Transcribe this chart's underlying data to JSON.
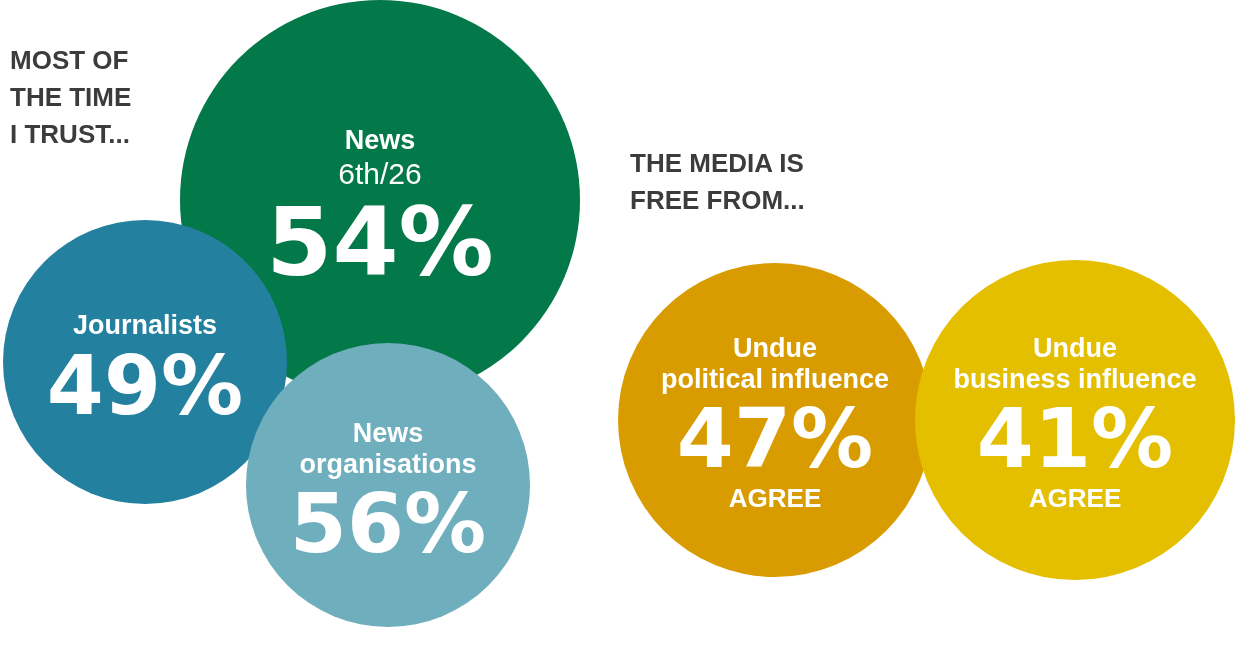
{
  "chart_data": [
    {
      "type": "other",
      "title": "MOST OF THE TIME I TRUST...",
      "categories": [
        "News",
        "Journalists",
        "News organisations"
      ],
      "values": [
        54,
        49,
        56
      ],
      "value_labels": [
        "54%",
        "49%",
        "56%"
      ],
      "colors": [
        "#037848",
        "#23809f",
        "#6eaebd"
      ],
      "annotations": [
        {
          "text": "6th/26",
          "x": "News"
        }
      ]
    },
    {
      "type": "other",
      "title": "THE MEDIA IS FREE FROM...",
      "categories": [
        "Undue political influence",
        "Undue business influence"
      ],
      "values": [
        47,
        41
      ],
      "value_labels": [
        "47%",
        "41%"
      ],
      "colors": [
        "#d99c00",
        "#e3bf00"
      ],
      "annotations": [
        {
          "text": "AGREE",
          "x": "Undue political influence"
        },
        {
          "text": "AGREE",
          "x": "Undue business influence"
        }
      ]
    }
  ]
}
